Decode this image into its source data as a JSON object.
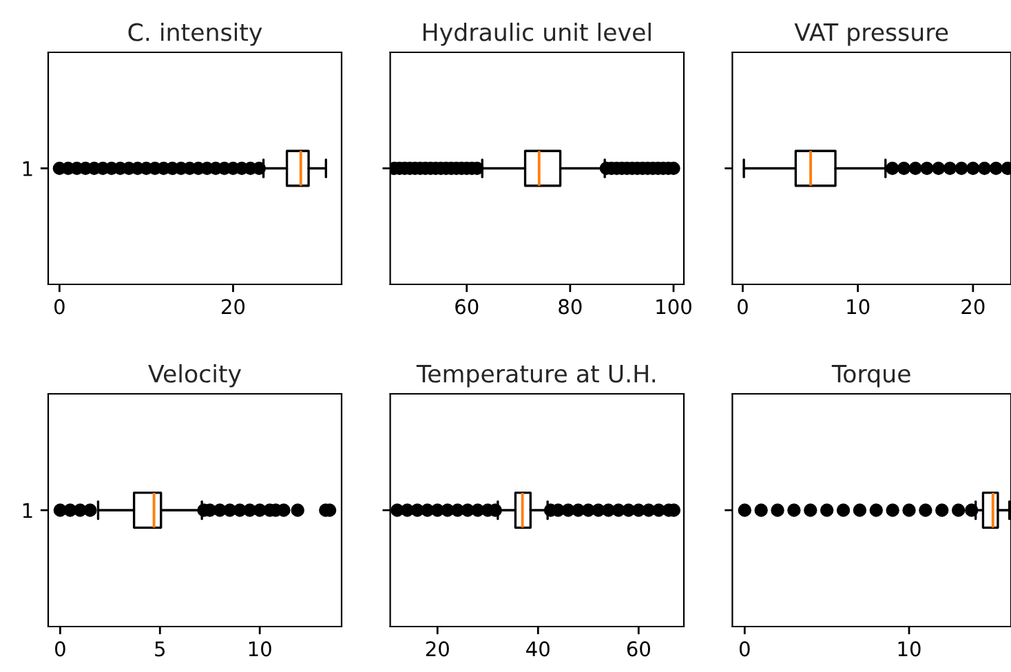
{
  "chart_data": [
    {
      "type": "box",
      "orientation": "horizontal",
      "title": "C. intensity",
      "categories": [
        "1"
      ],
      "xlim": [
        -1.3,
        32.5
      ],
      "xticks": [
        0,
        20
      ],
      "boxes": [
        {
          "low": 23.5,
          "q1": 26.2,
          "median": 27.8,
          "q3": 28.7,
          "high": 30.7,
          "outliers": [
            0,
            1,
            2,
            3,
            4,
            5,
            6,
            7,
            8,
            9,
            10,
            11,
            12,
            13,
            14,
            15,
            16,
            17,
            18,
            19,
            20,
            21,
            22,
            23
          ]
        }
      ]
    },
    {
      "type": "box",
      "orientation": "horizontal",
      "title": "Hydraulic unit level",
      "categories": [
        null
      ],
      "xlim": [
        45.2,
        102
      ],
      "xticks": [
        60,
        80,
        100
      ],
      "boxes": [
        {
          "low": 63,
          "q1": 71.3,
          "median": 74,
          "q3": 78.1,
          "high": 86.7,
          "outliers": [
            46,
            47,
            48,
            49,
            50,
            51,
            52,
            53,
            54,
            55,
            56,
            57,
            58,
            59,
            60,
            61,
            62,
            87,
            88,
            89,
            90,
            91,
            92,
            93,
            94,
            95,
            96,
            97,
            98,
            99,
            100
          ]
        }
      ]
    },
    {
      "type": "box",
      "orientation": "horizontal",
      "title": "VAT pressure",
      "categories": [
        null
      ],
      "xlim": [
        -0.9,
        23.3
      ],
      "xticks": [
        0,
        10,
        20
      ],
      "boxes": [
        {
          "low": 0.1,
          "q1": 4.6,
          "median": 5.9,
          "q3": 8.05,
          "high": 12.4,
          "outliers": [
            13,
            14,
            15,
            16,
            17,
            18,
            19,
            20,
            21,
            22,
            23
          ]
        }
      ]
    },
    {
      "type": "box",
      "orientation": "horizontal",
      "title": "Velocity",
      "categories": [
        "1"
      ],
      "xlim": [
        -0.6,
        14.1
      ],
      "xticks": [
        0,
        5,
        10
      ],
      "boxes": [
        {
          "low": 1.9,
          "q1": 3.7,
          "median": 4.7,
          "q3": 5.05,
          "high": 7.1,
          "outliers": [
            0,
            0.5,
            1,
            1.5,
            7.2,
            7.5,
            8,
            8.5,
            9,
            9.5,
            10,
            10.5,
            10.8,
            11.2,
            11.9,
            13.3,
            13.5
          ]
        }
      ]
    },
    {
      "type": "box",
      "orientation": "horizontal",
      "title": "Temperature at U.H.",
      "categories": [
        null
      ],
      "xlim": [
        10.6,
        69
      ],
      "xticks": [
        20,
        40,
        60
      ],
      "boxes": [
        {
          "low": 32,
          "q1": 35.5,
          "median": 36.9,
          "q3": 38.5,
          "high": 41.9,
          "outliers": [
            12,
            14,
            16,
            18,
            20,
            22,
            24,
            26,
            28,
            30,
            31.5,
            42.5,
            44,
            46,
            48,
            50,
            52,
            54,
            56,
            58,
            60,
            62,
            64,
            66,
            67
          ]
        }
      ]
    },
    {
      "type": "box",
      "orientation": "horizontal",
      "title": "Torque",
      "categories": [
        null
      ],
      "xlim": [
        -0.75,
        16.2
      ],
      "xticks": [
        0,
        10
      ],
      "boxes": [
        {
          "low": 14.05,
          "q1": 14.5,
          "median": 15.1,
          "q3": 15.4,
          "high": 16.1,
          "outliers": [
            0,
            1,
            2,
            3,
            4,
            5,
            6,
            7,
            8,
            9,
            10,
            11,
            12,
            13,
            13.8
          ]
        }
      ]
    }
  ]
}
